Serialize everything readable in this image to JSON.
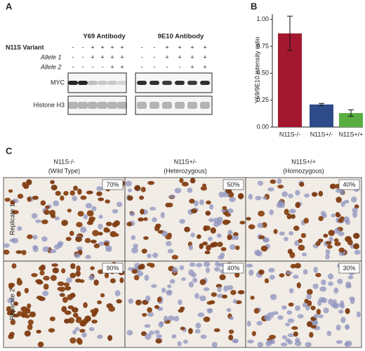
{
  "panel_a": {
    "label": "A",
    "antibodies": [
      "Y69 Antibody",
      "9E10 Antibody"
    ],
    "row_labels": [
      "N11S Variant",
      "Allele 1",
      "Allele 2"
    ],
    "signs": [
      [
        "-",
        "-",
        "+",
        "+",
        "+",
        "+"
      ],
      [
        "-",
        "-",
        "+",
        "+",
        "+",
        "+"
      ],
      [
        "-",
        "-",
        "-",
        "-",
        "+",
        "+"
      ]
    ],
    "blot_labels": [
      "MYC",
      "Histone H3"
    ]
  },
  "chart_data": {
    "type": "bar",
    "label": "B",
    "categories": [
      "N11S-/-",
      "N11S+/-",
      "N11S+/+"
    ],
    "values": [
      0.87,
      0.21,
      0.13
    ],
    "errors": [
      0.16,
      0.01,
      0.03
    ],
    "colors": [
      "#a3182f",
      "#2d4b88",
      "#5aae3f"
    ],
    "ylabel": "Y69/9E10 intensity ratio",
    "ylim": [
      0,
      1.05
    ],
    "yticks": [
      {
        "value": 0,
        "label": "0.00"
      },
      {
        "value": 0.25,
        "label": "0.25"
      },
      {
        "value": 0.5,
        "label": "0.50"
      },
      {
        "value": 0.75,
        "label": "0.75"
      },
      {
        "value": 1,
        "label": "1.00"
      }
    ]
  },
  "panel_c": {
    "label": "C",
    "columns": [
      {
        "genotype": "N11S-/-",
        "description": "(Wild Type)"
      },
      {
        "genotype": "N11S+/-",
        "description": "(Heterozygous)"
      },
      {
        "genotype": "N11S+/+",
        "description": "(Homozygous)"
      }
    ],
    "rows": [
      "Replicate 1",
      "Replicate 2"
    ],
    "percentages": [
      [
        "70%",
        "50%",
        "40%"
      ],
      [
        "90%",
        "40%",
        "30%"
      ]
    ]
  }
}
